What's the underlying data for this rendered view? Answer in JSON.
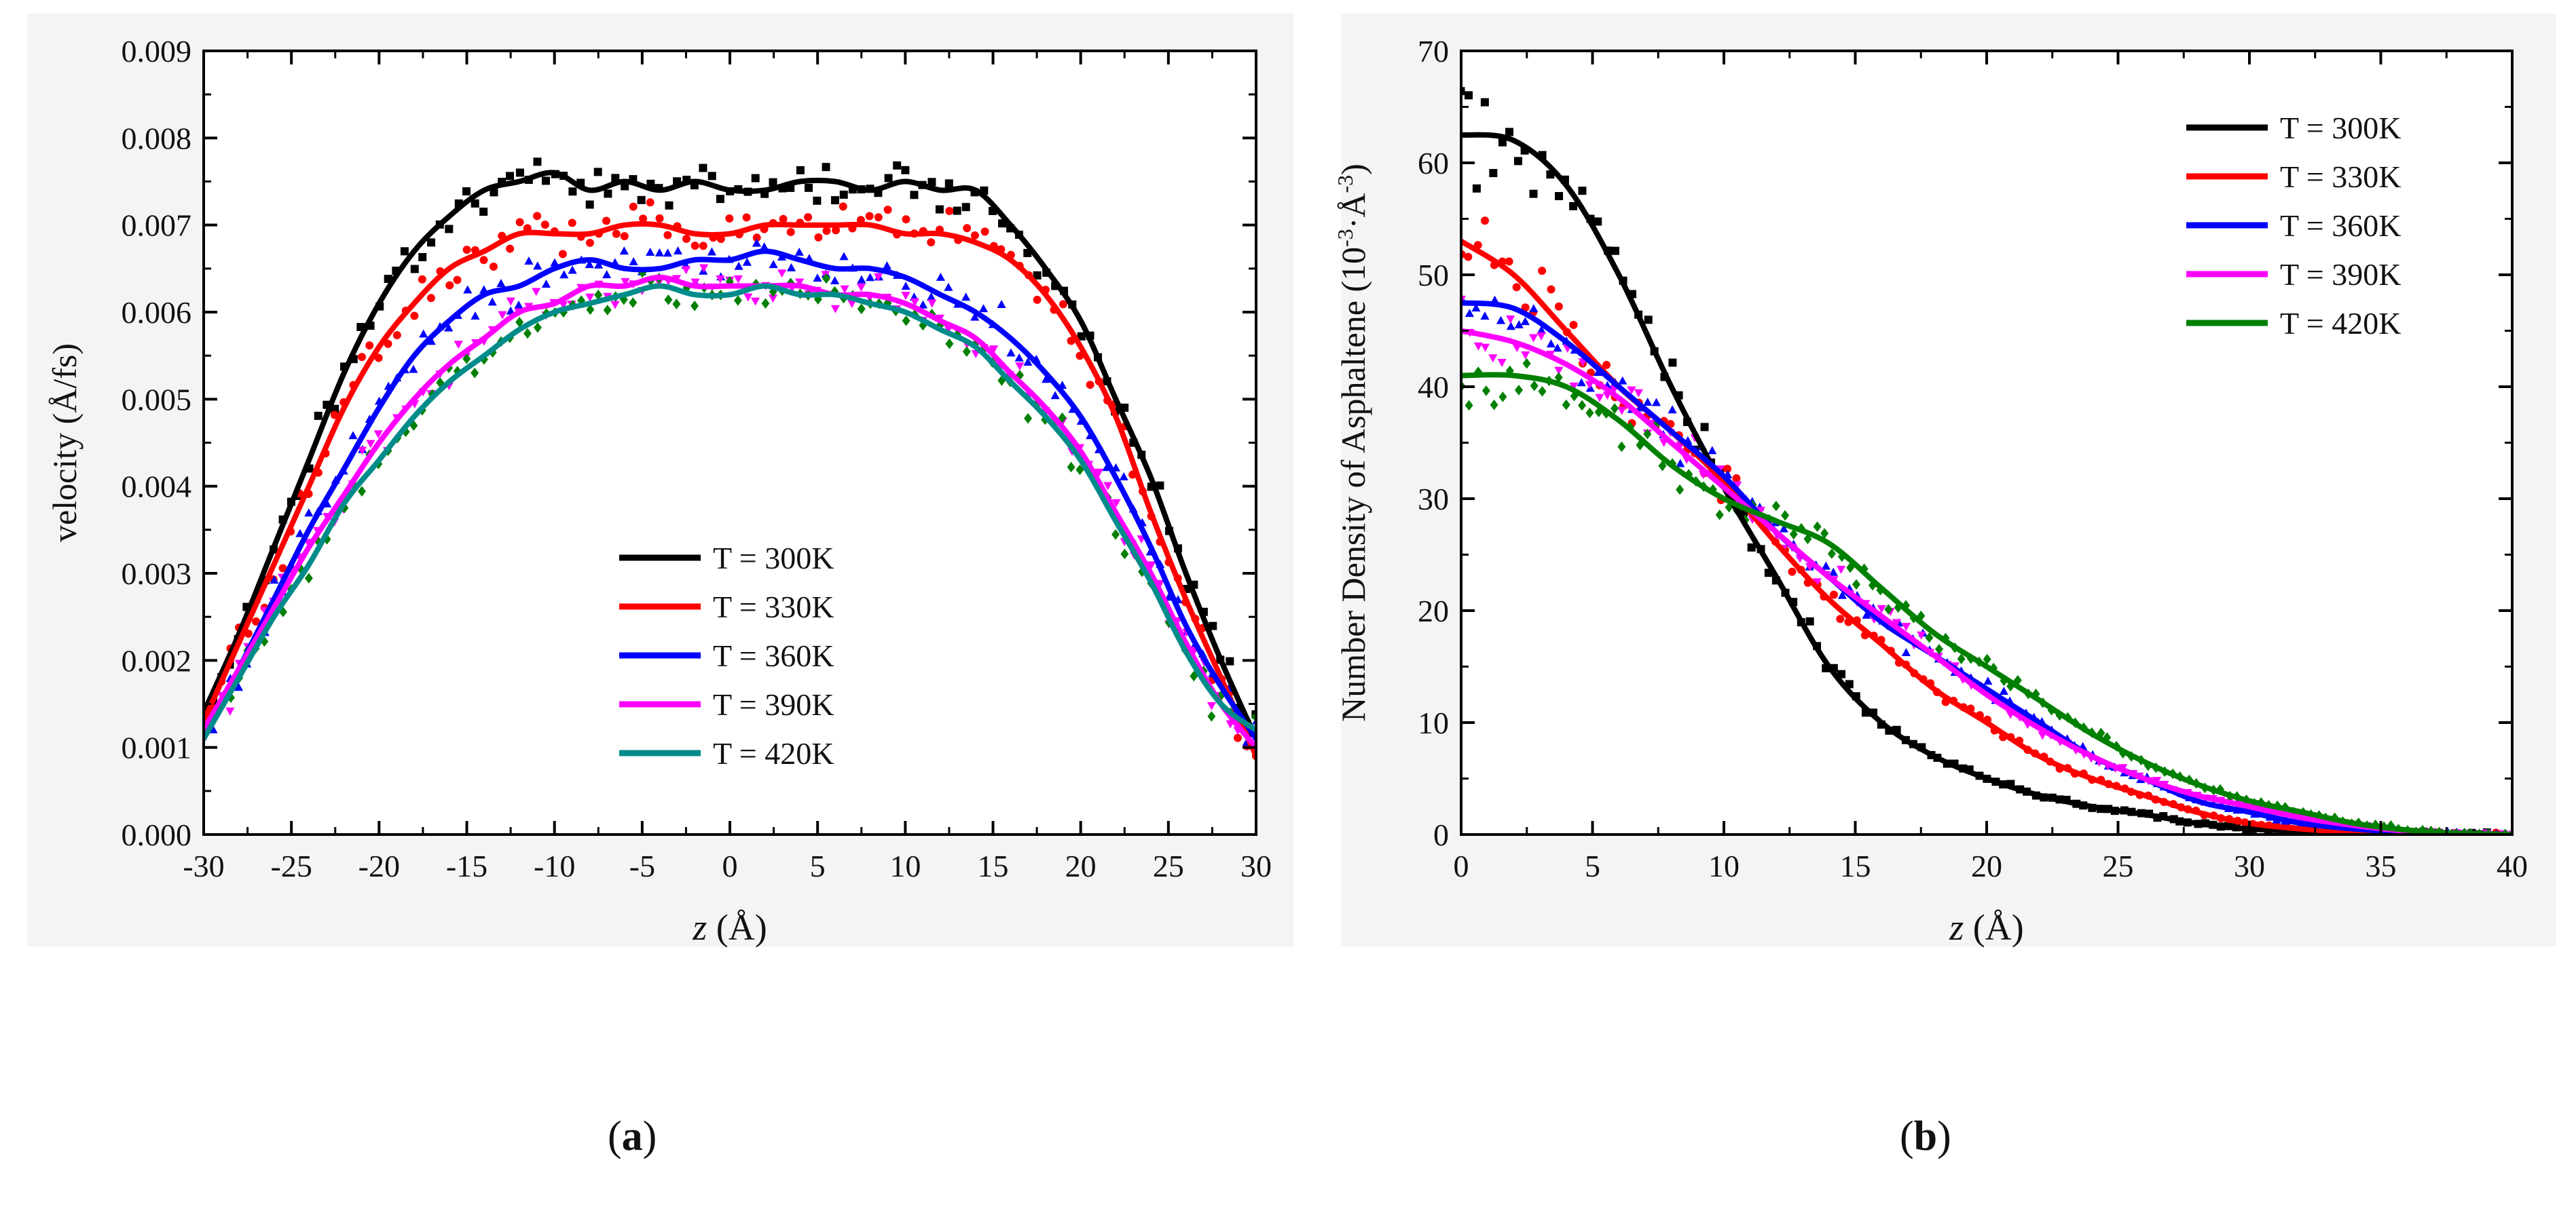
{
  "chart_data": [
    {
      "panel": "a",
      "type": "line",
      "caption": "(a)",
      "xlabel_var": "z",
      "xlabel_unit": " (Å)",
      "ylabel": "velocity (Å/fs)",
      "xlim": [
        -30,
        30
      ],
      "ylim": [
        0,
        0.009
      ],
      "xticks": [
        -30,
        -25,
        -20,
        -15,
        -10,
        -5,
        0,
        5,
        10,
        15,
        20,
        25,
        30
      ],
      "yticks": [
        "0.000",
        "0.001",
        "0.002",
        "0.003",
        "0.004",
        "0.005",
        "0.006",
        "0.007",
        "0.008",
        "0.009"
      ],
      "legend_position": "center-right",
      "scatter_points_shown": true,
      "series": [
        {
          "name": "T = 300K",
          "color": "#000000",
          "marker": "square",
          "x": [
            -30,
            -28,
            -26,
            -24,
            -22,
            -20,
            -18,
            -16,
            -14,
            -12,
            -10,
            -8,
            -6,
            -4,
            -2,
            0,
            2,
            4,
            6,
            8,
            10,
            12,
            14,
            16,
            18,
            20,
            22,
            24,
            26,
            28,
            30
          ],
          "y": [
            0.0014,
            0.0023,
            0.0033,
            0.0043,
            0.0053,
            0.0061,
            0.0067,
            0.0071,
            0.0074,
            0.0075,
            0.0076,
            0.0074,
            0.0075,
            0.0074,
            0.0075,
            0.0074,
            0.0074,
            0.0075,
            0.0075,
            0.0074,
            0.0075,
            0.0074,
            0.0074,
            0.007,
            0.0065,
            0.0059,
            0.005,
            0.0041,
            0.003,
            0.002,
            0.0011
          ]
        },
        {
          "name": "T = 330K",
          "color": "#ff0000",
          "marker": "circle",
          "x": [
            -30,
            -28,
            -26,
            -24,
            -22,
            -20,
            -18,
            -16,
            -14,
            -12,
            -10,
            -8,
            -6,
            -4,
            -2,
            0,
            2,
            4,
            6,
            8,
            10,
            12,
            14,
            16,
            18,
            20,
            22,
            24,
            26,
            28,
            30
          ],
          "y": [
            0.0013,
            0.0022,
            0.0031,
            0.004,
            0.0049,
            0.0056,
            0.0061,
            0.0065,
            0.0067,
            0.0069,
            0.0069,
            0.0069,
            0.007,
            0.007,
            0.0069,
            0.0069,
            0.007,
            0.007,
            0.007,
            0.007,
            0.0069,
            0.0069,
            0.0068,
            0.0066,
            0.0062,
            0.0056,
            0.0048,
            0.0037,
            0.0027,
            0.0018,
            0.0009
          ]
        },
        {
          "name": "T = 360K",
          "color": "#0000ff",
          "marker": "triangle-up",
          "x": [
            -30,
            -28,
            -26,
            -24,
            -22,
            -20,
            -18,
            -16,
            -14,
            -12,
            -10,
            -8,
            -6,
            -4,
            -2,
            0,
            2,
            4,
            6,
            8,
            10,
            12,
            14,
            16,
            18,
            20,
            22,
            24,
            26,
            28,
            30
          ],
          "y": [
            0.0011,
            0.0019,
            0.0027,
            0.0035,
            0.0042,
            0.0049,
            0.0055,
            0.0059,
            0.0062,
            0.0063,
            0.0065,
            0.0066,
            0.0065,
            0.0065,
            0.0066,
            0.0066,
            0.0067,
            0.0066,
            0.0065,
            0.0065,
            0.0064,
            0.0062,
            0.006,
            0.0057,
            0.0053,
            0.0048,
            0.0041,
            0.0033,
            0.0024,
            0.0017,
            0.0011
          ]
        },
        {
          "name": "T = 390K",
          "color": "#ff00ff",
          "marker": "triangle-down",
          "x": [
            -30,
            -28,
            -26,
            -24,
            -22,
            -20,
            -18,
            -16,
            -14,
            -12,
            -10,
            -8,
            -6,
            -4,
            -2,
            0,
            2,
            4,
            6,
            8,
            10,
            12,
            14,
            16,
            18,
            20,
            22,
            24,
            26,
            28,
            30
          ],
          "y": [
            0.0012,
            0.0019,
            0.0026,
            0.0033,
            0.0039,
            0.0045,
            0.005,
            0.0054,
            0.0057,
            0.006,
            0.0061,
            0.0063,
            0.0063,
            0.0064,
            0.0063,
            0.0063,
            0.0063,
            0.0063,
            0.0062,
            0.0062,
            0.0061,
            0.0059,
            0.0057,
            0.0053,
            0.0049,
            0.0044,
            0.0037,
            0.003,
            0.0022,
            0.0015,
            0.001
          ]
        },
        {
          "name": "T = 420K",
          "color": "#008b8b",
          "point_color": "#008000",
          "marker": "diamond",
          "x": [
            -30,
            -28,
            -26,
            -24,
            -22,
            -20,
            -18,
            -16,
            -14,
            -12,
            -10,
            -8,
            -6,
            -4,
            -2,
            0,
            2,
            4,
            6,
            8,
            10,
            12,
            14,
            16,
            18,
            20,
            22,
            24,
            26,
            28,
            30
          ],
          "y": [
            0.0011,
            0.0018,
            0.0025,
            0.0031,
            0.0038,
            0.0043,
            0.0048,
            0.0052,
            0.0055,
            0.0058,
            0.006,
            0.0061,
            0.0062,
            0.0063,
            0.0062,
            0.0062,
            0.0063,
            0.0062,
            0.0062,
            0.0061,
            0.006,
            0.0058,
            0.0056,
            0.0052,
            0.0048,
            0.0043,
            0.0036,
            0.0029,
            0.0021,
            0.0015,
            0.0012
          ]
        }
      ]
    },
    {
      "panel": "b",
      "type": "line",
      "caption": "(b)",
      "xlabel_var": "z",
      "xlabel_unit": " (Å)",
      "ylabel_main": "Number Density of Asphaltene (10",
      "ylabel_sup1": "-3",
      "ylabel_mid": "·Å",
      "ylabel_sup2": "-3",
      "ylabel_end": ")",
      "xlim": [
        0,
        40
      ],
      "ylim": [
        0,
        70
      ],
      "xticks": [
        0,
        5,
        10,
        15,
        20,
        25,
        30,
        35,
        40
      ],
      "yticks": [
        0,
        10,
        20,
        30,
        40,
        50,
        60,
        70
      ],
      "legend_position": "top-right",
      "scatter_points_shown": true,
      "series": [
        {
          "name": "T = 300K",
          "color": "#000000",
          "marker": "square",
          "x": [
            0,
            2,
            4,
            6,
            8,
            10,
            12,
            14,
            16,
            18,
            20,
            22,
            24,
            26,
            28,
            30,
            32,
            34,
            36,
            38,
            40
          ],
          "y": [
            62.5,
            62,
            58,
            50,
            40,
            31,
            23,
            15,
            10,
            7,
            5,
            3.5,
            2.5,
            1.8,
            1,
            0.5,
            0.3,
            0.2,
            0.1,
            0.05,
            0
          ]
        },
        {
          "name": "T = 330K",
          "color": "#ff0000",
          "marker": "circle",
          "x": [
            0,
            2,
            4,
            6,
            8,
            10,
            12,
            14,
            16,
            18,
            20,
            22,
            24,
            26,
            28,
            30,
            32,
            34,
            36,
            38,
            40
          ],
          "y": [
            53,
            50,
            45,
            40,
            36,
            31.5,
            26,
            21,
            17,
            13,
            10,
            7,
            5,
            3.5,
            2,
            1,
            0.5,
            0.2,
            0.1,
            0.05,
            0
          ]
        },
        {
          "name": "T = 360K",
          "color": "#0000ff",
          "marker": "triangle-up",
          "x": [
            0,
            2,
            4,
            6,
            8,
            10,
            12,
            14,
            16,
            18,
            20,
            22,
            24,
            26,
            28,
            30,
            32,
            34,
            36,
            38,
            40
          ],
          "y": [
            47.5,
            47,
            44,
            40,
            36,
            32,
            27,
            23,
            19,
            16,
            13,
            10,
            7,
            5,
            3,
            2,
            1,
            0.5,
            0.2,
            0.1,
            0
          ]
        },
        {
          "name": "T = 390K",
          "color": "#ff00ff",
          "marker": "triangle-down",
          "x": [
            0,
            2,
            4,
            6,
            8,
            10,
            12,
            14,
            16,
            18,
            20,
            22,
            24,
            26,
            28,
            30,
            32,
            34,
            36,
            38,
            40
          ],
          "y": [
            45,
            44,
            42,
            39,
            35,
            31,
            27,
            23,
            19.5,
            16,
            12.5,
            9.5,
            7,
            5,
            3.5,
            2.5,
            1.5,
            0.8,
            0.3,
            0.1,
            0
          ]
        },
        {
          "name": "T = 420K",
          "color": "#008000",
          "marker": "diamond",
          "x": [
            0,
            2,
            4,
            6,
            8,
            10,
            12,
            14,
            16,
            18,
            20,
            22,
            24,
            26,
            28,
            30,
            32,
            34,
            36,
            38,
            40
          ],
          "y": [
            41,
            41,
            40,
            37,
            33,
            30,
            28,
            26,
            22,
            18,
            15,
            12,
            9,
            6.5,
            4.5,
            3,
            2,
            1,
            0.4,
            0.1,
            0
          ]
        }
      ]
    }
  ]
}
